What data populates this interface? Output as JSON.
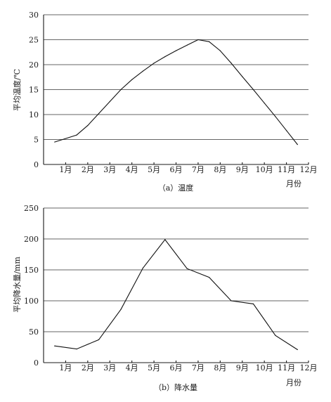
{
  "chart_data": [
    {
      "type": "line",
      "caption": "（a）温度",
      "ylabel": "平均温度/℃",
      "xlabel_unit": "月份",
      "ylim": [
        0,
        30
      ],
      "yticks": [
        0,
        5,
        10,
        15,
        20,
        25,
        30
      ],
      "grid": true,
      "categories": [
        "1月",
        "2月",
        "3月",
        "4月",
        "5月",
        "6月",
        "7月",
        "8月",
        "9月",
        "10月",
        "11月",
        "12月"
      ],
      "x": [
        0.5,
        1.5,
        2,
        2.5,
        3,
        3.5,
        4,
        4.5,
        5,
        5.5,
        6,
        6.5,
        7,
        7.5,
        8,
        8.5,
        9,
        9.5,
        10,
        10.5,
        11,
        11.5
      ],
      "values": [
        4.5,
        5.9,
        7.8,
        10.2,
        12.6,
        15.0,
        17.0,
        18.7,
        20.3,
        21.6,
        22.8,
        23.9,
        25.0,
        24.6,
        22.8,
        20.3,
        17.6,
        15.0,
        12.3,
        9.6,
        6.8,
        4.0
      ]
    },
    {
      "type": "line",
      "caption": "（b）降水量",
      "ylabel": "平均降水量/mm",
      "xlabel_unit": "月份",
      "ylim": [
        0,
        250
      ],
      "yticks": [
        0,
        50,
        100,
        150,
        200,
        250
      ],
      "grid": true,
      "categories": [
        "1月",
        "2月",
        "3月",
        "4月",
        "5月",
        "6月",
        "7月",
        "8月",
        "9月",
        "10月",
        "11月",
        "12月"
      ],
      "x": [
        0.5,
        1.5,
        2.5,
        3.5,
        4.5,
        5.5,
        6.5,
        7.5,
        8.5,
        9.5,
        10.5,
        11.5
      ],
      "values": [
        27,
        22,
        37,
        86,
        153,
        199,
        152,
        138,
        100,
        95,
        44,
        21
      ]
    }
  ]
}
